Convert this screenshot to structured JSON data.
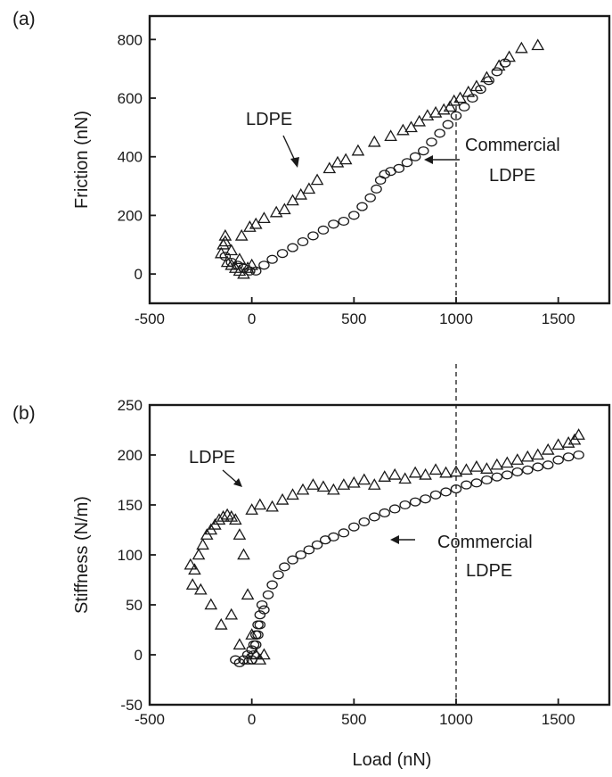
{
  "chart_data": [
    {
      "type": "scatter",
      "panel_label": "(a)",
      "title": "",
      "xlabel": "",
      "ylabel": "Friction (nN)",
      "xlim": [
        -500,
        1750
      ],
      "ylim": [
        -100,
        880
      ],
      "xticks": [
        "-500",
        "0",
        "500",
        "1000",
        "1500"
      ],
      "yticks": [
        "0",
        "200",
        "400",
        "600",
        "800"
      ],
      "xtick_values": [
        -500,
        0,
        500,
        1000,
        1500
      ],
      "ytick_values": [
        0,
        200,
        400,
        600,
        800
      ],
      "grid": false,
      "reference_line": {
        "x": 1000,
        "style": "dashed"
      },
      "annotations": [
        {
          "text": "LDPE",
          "points_to": "LDPE series"
        },
        {
          "text": "Commercial",
          "points_to": "Commercial LDPE series"
        },
        {
          "text": "LDPE",
          "points_to": "Commercial LDPE series"
        }
      ],
      "series": [
        {
          "name": "LDPE",
          "marker": "triangle",
          "x": [
            -130,
            -140,
            -150,
            -120,
            -100,
            -80,
            -60,
            -40,
            -20,
            0,
            -60,
            -100,
            -130,
            -50,
            -10,
            20,
            60,
            120,
            160,
            200,
            240,
            280,
            320,
            380,
            420,
            460,
            520,
            600,
            680,
            740,
            780,
            820,
            860,
            900,
            940,
            970,
            990,
            1020,
            1060,
            1100,
            1150,
            1210,
            1260,
            1320,
            1400
          ],
          "y": [
            130,
            100,
            70,
            40,
            30,
            20,
            10,
            0,
            20,
            30,
            50,
            80,
            110,
            130,
            160,
            170,
            190,
            210,
            220,
            250,
            270,
            290,
            320,
            360,
            380,
            390,
            420,
            450,
            470,
            490,
            500,
            520,
            540,
            550,
            560,
            570,
            590,
            600,
            620,
            640,
            670,
            710,
            740,
            770,
            780
          ]
        },
        {
          "name": "Commercial LDPE",
          "marker": "circle",
          "x": [
            -130,
            -100,
            -70,
            -40,
            -10,
            20,
            60,
            100,
            150,
            200,
            250,
            300,
            350,
            400,
            450,
            500,
            540,
            580,
            610,
            630,
            650,
            680,
            720,
            760,
            800,
            840,
            880,
            920,
            960,
            1000,
            1040,
            1080,
            1120,
            1160,
            1200,
            1240
          ],
          "y": [
            60,
            40,
            30,
            20,
            10,
            10,
            30,
            50,
            70,
            90,
            110,
            130,
            150,
            170,
            180,
            200,
            230,
            260,
            290,
            320,
            340,
            350,
            360,
            380,
            400,
            420,
            450,
            480,
            510,
            540,
            570,
            600,
            630,
            660,
            690,
            720
          ]
        }
      ]
    },
    {
      "type": "scatter",
      "panel_label": "(b)",
      "title": "",
      "xlabel": "Load (nN)",
      "ylabel": "Stiffness (N/m)",
      "xlim": [
        -500,
        1750
      ],
      "ylim": [
        -50,
        250
      ],
      "xticks": [
        "-500",
        "0",
        "500",
        "1000",
        "1500"
      ],
      "yticks": [
        "-50",
        "0",
        "50",
        "100",
        "150",
        "200",
        "250"
      ],
      "xtick_values": [
        -500,
        0,
        500,
        1000,
        1500
      ],
      "ytick_values": [
        -50,
        0,
        50,
        100,
        150,
        200,
        250
      ],
      "grid": false,
      "reference_line": {
        "x": 1000,
        "style": "dashed"
      },
      "annotations": [
        {
          "text": "LDPE",
          "points_to": "LDPE series"
        },
        {
          "text": "Commercial",
          "points_to": "Commercial LDPE series"
        },
        {
          "text": "LDPE",
          "points_to": "Commercial LDPE series"
        }
      ],
      "series": [
        {
          "name": "LDPE",
          "marker": "triangle",
          "x": [
            -300,
            -290,
            -280,
            -260,
            -240,
            -220,
            -200,
            -180,
            -160,
            -140,
            -120,
            -100,
            -80,
            -60,
            -40,
            -20,
            0,
            20,
            40,
            60,
            -100,
            -150,
            -200,
            -250,
            -60,
            -20,
            0,
            40,
            100,
            150,
            200,
            250,
            300,
            350,
            400,
            450,
            500,
            550,
            600,
            650,
            700,
            750,
            800,
            850,
            900,
            950,
            1000,
            1050,
            1100,
            1150,
            1200,
            1250,
            1300,
            1350,
            1400,
            1450,
            1500,
            1550,
            1580,
            1600
          ],
          "y": [
            90,
            70,
            85,
            100,
            110,
            120,
            125,
            130,
            135,
            138,
            140,
            138,
            135,
            120,
            100,
            60,
            20,
            0,
            -5,
            0,
            40,
            30,
            50,
            65,
            10,
            -5,
            145,
            150,
            148,
            155,
            160,
            165,
            170,
            168,
            165,
            170,
            172,
            175,
            170,
            178,
            180,
            176,
            182,
            180,
            185,
            182,
            183,
            185,
            188,
            186,
            190,
            192,
            195,
            198,
            200,
            205,
            210,
            212,
            215,
            220
          ]
        },
        {
          "name": "Commercial LDPE",
          "marker": "circle",
          "x": [
            -80,
            -60,
            -40,
            -20,
            0,
            10,
            20,
            30,
            40,
            50,
            0,
            10,
            20,
            30,
            40,
            60,
            80,
            100,
            130,
            160,
            200,
            240,
            280,
            320,
            360,
            400,
            450,
            500,
            550,
            600,
            650,
            700,
            750,
            800,
            850,
            900,
            950,
            1000,
            1050,
            1100,
            1150,
            1200,
            1250,
            1300,
            1350,
            1400,
            1450,
            1500,
            1550,
            1600
          ],
          "y": [
            -5,
            -8,
            -5,
            0,
            5,
            10,
            20,
            30,
            40,
            50,
            -5,
            0,
            10,
            20,
            30,
            45,
            60,
            70,
            80,
            88,
            95,
            100,
            105,
            110,
            115,
            118,
            122,
            128,
            133,
            138,
            142,
            146,
            150,
            153,
            156,
            160,
            163,
            166,
            170,
            172,
            175,
            178,
            180,
            183,
            185,
            188,
            190,
            195,
            198,
            200
          ]
        }
      ]
    }
  ]
}
